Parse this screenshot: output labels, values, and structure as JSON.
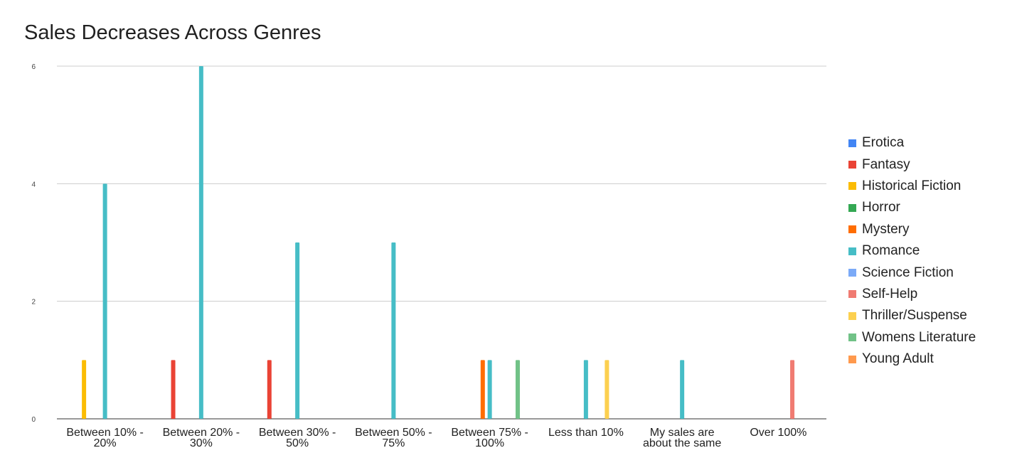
{
  "chart_data": {
    "type": "bar",
    "title": "Sales Decreases Across Genres",
    "xlabel": "",
    "ylabel": "",
    "ylim": [
      0,
      6
    ],
    "yticks": [
      0,
      2,
      4,
      6
    ],
    "grid": true,
    "legend_position": "right",
    "categories": [
      [
        "Between 10% -",
        "20%"
      ],
      [
        "Between 20% -",
        "30%"
      ],
      [
        "Between 30% -",
        "50%"
      ],
      [
        "Between 50% -",
        "75%"
      ],
      [
        "Between 75% -",
        "100%"
      ],
      [
        "Less than 10%"
      ],
      [
        "My sales are",
        "about the same"
      ],
      [
        "Over 100%"
      ]
    ],
    "series": [
      {
        "name": "Erotica",
        "color": "#4285f4",
        "values": [
          0,
          0,
          0,
          0,
          0,
          0,
          0,
          0
        ]
      },
      {
        "name": "Fantasy",
        "color": "#ea4335",
        "values": [
          0,
          1,
          1,
          0,
          0,
          0,
          0,
          0
        ]
      },
      {
        "name": "Historical Fiction",
        "color": "#fbbc04",
        "values": [
          1,
          0,
          0,
          0,
          0,
          0,
          0,
          0
        ]
      },
      {
        "name": "Horror",
        "color": "#34a853",
        "values": [
          0,
          0,
          0,
          0,
          0,
          0,
          0,
          0
        ]
      },
      {
        "name": "Mystery",
        "color": "#ff6d01",
        "values": [
          0,
          0,
          0,
          0,
          1,
          0,
          0,
          0
        ]
      },
      {
        "name": "Romance",
        "color": "#46bdc6",
        "values": [
          4,
          6,
          3,
          3,
          1,
          1,
          1,
          0
        ]
      },
      {
        "name": "Science Fiction",
        "color": "#7baaf7",
        "values": [
          0,
          0,
          0,
          0,
          0,
          0,
          0,
          0
        ]
      },
      {
        "name": "Self-Help",
        "color": "#f07b72",
        "values": [
          0,
          0,
          0,
          0,
          0,
          0,
          0,
          1
        ]
      },
      {
        "name": "Thriller/Suspense",
        "color": "#fcd04f",
        "values": [
          0,
          0,
          0,
          0,
          0,
          1,
          0,
          0
        ]
      },
      {
        "name": "Womens Literature",
        "color": "#71c287",
        "values": [
          0,
          0,
          0,
          0,
          1,
          0,
          0,
          0
        ]
      },
      {
        "name": "Young Adult",
        "color": "#ff994d",
        "values": [
          0,
          0,
          0,
          0,
          0,
          0,
          0,
          0
        ]
      }
    ]
  }
}
